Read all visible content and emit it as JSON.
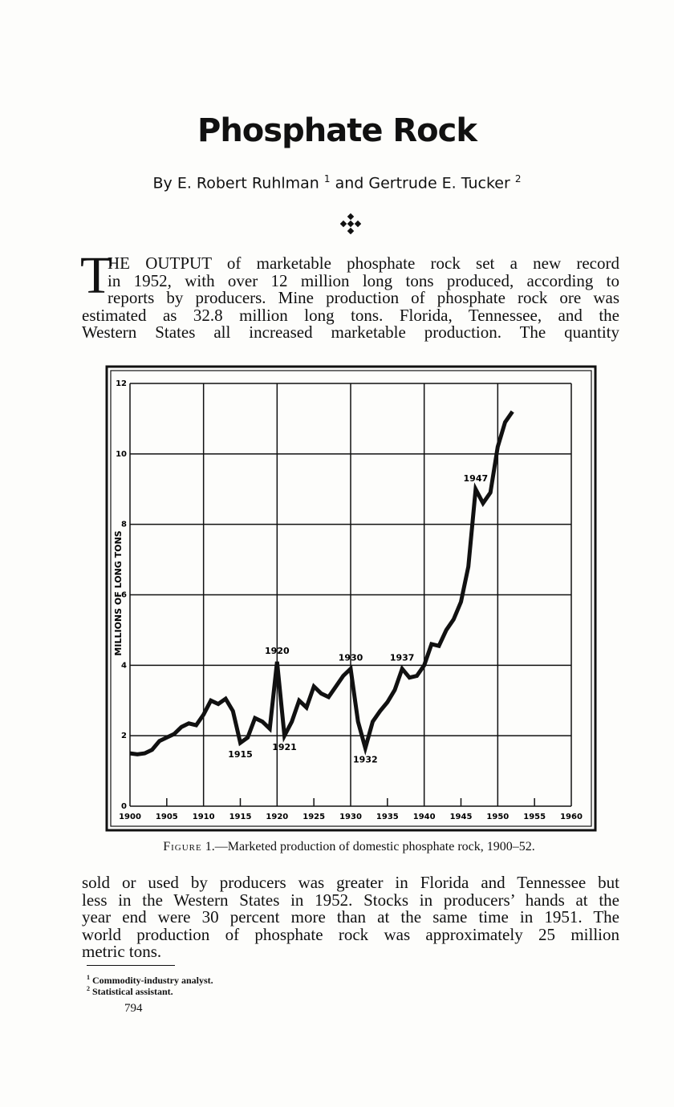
{
  "header": {
    "title": "Phosphate Rock",
    "byline": [
      {
        "text": "By E. Robert Ruhlman",
        "sup": "1"
      },
      {
        "text": "and Gertrude E. Tucker",
        "sup": "2"
      }
    ]
  },
  "intro": {
    "drop_cap": "T",
    "lines": [
      "HE OUTPUT of marketable phosphate rock set a new record",
      "in 1952, with over 12 million long tons produced, according to",
      "reports by producers.  Mine production of phosphate rock ore was",
      "estimated as 32.8 million long tons.  Florida, Tennessee, and the",
      "Western States all increased marketable production.  The quantity"
    ]
  },
  "chart_data": {
    "type": "line",
    "ylabel": "MILLIONS OF LONG TONS",
    "color": "#111111",
    "grid": true,
    "x": [
      1900,
      1901,
      1902,
      1903,
      1904,
      1905,
      1906,
      1907,
      1908,
      1909,
      1910,
      1911,
      1912,
      1913,
      1914,
      1915,
      1916,
      1917,
      1918,
      1919,
      1920,
      1921,
      1922,
      1923,
      1924,
      1925,
      1926,
      1927,
      1928,
      1929,
      1930,
      1931,
      1932,
      1933,
      1934,
      1935,
      1936,
      1937,
      1938,
      1939,
      1940,
      1941,
      1942,
      1943,
      1944,
      1945,
      1946,
      1947,
      1948,
      1949,
      1950,
      1951,
      1952
    ],
    "values": [
      1.5,
      1.47,
      1.5,
      1.6,
      1.85,
      1.95,
      2.05,
      2.25,
      2.35,
      2.3,
      2.6,
      3.0,
      2.9,
      3.05,
      2.7,
      1.8,
      1.95,
      2.5,
      2.4,
      2.2,
      4.1,
      2.0,
      2.4,
      3.0,
      2.8,
      3.4,
      3.2,
      3.1,
      3.4,
      3.7,
      3.9,
      2.4,
      1.65,
      2.4,
      2.7,
      2.95,
      3.3,
      3.9,
      3.65,
      3.7,
      4.0,
      4.6,
      4.55,
      5.0,
      5.3,
      5.8,
      6.8,
      9.0,
      8.6,
      8.9,
      10.2,
      10.9,
      11.2
    ],
    "xlim": [
      1900,
      1960
    ],
    "xticks": [
      1900,
      1905,
      1910,
      1915,
      1920,
      1925,
      1930,
      1935,
      1940,
      1945,
      1950,
      1955,
      1960
    ],
    "ylim": [
      0,
      12
    ],
    "yticks": [
      0,
      2,
      4,
      6,
      8,
      10,
      12
    ],
    "annotations": [
      {
        "text": "1920",
        "x": 1920,
        "position": "above"
      },
      {
        "text": "1930",
        "x": 1930,
        "position": "above"
      },
      {
        "text": "1937",
        "x": 1937,
        "position": "above"
      },
      {
        "text": "1947",
        "x": 1947,
        "position": "above"
      },
      {
        "text": "1915",
        "x": 1915,
        "position": "below"
      },
      {
        "text": "1921",
        "x": 1921,
        "position": "below"
      },
      {
        "text": "1932",
        "x": 1932,
        "position": "below"
      }
    ]
  },
  "caption": {
    "label": "Figure",
    "text": " 1.—Marketed production of domestic phosphate rock, 1900–52."
  },
  "body": {
    "lines": [
      "sold or used by producers was greater in Florida and Tennessee but",
      "less in the Western States in 1952.  Stocks in producers’ hands at the",
      "year end were 30 percent more than at the same time in 1951.  The",
      "world production of phosphate rock was approximately 25 million",
      "metric tons."
    ]
  },
  "footnotes": [
    {
      "mark": "1",
      "text": "Commodity-industry analyst."
    },
    {
      "mark": "2",
      "text": "Statistical assistant."
    }
  ],
  "page_number": "794"
}
